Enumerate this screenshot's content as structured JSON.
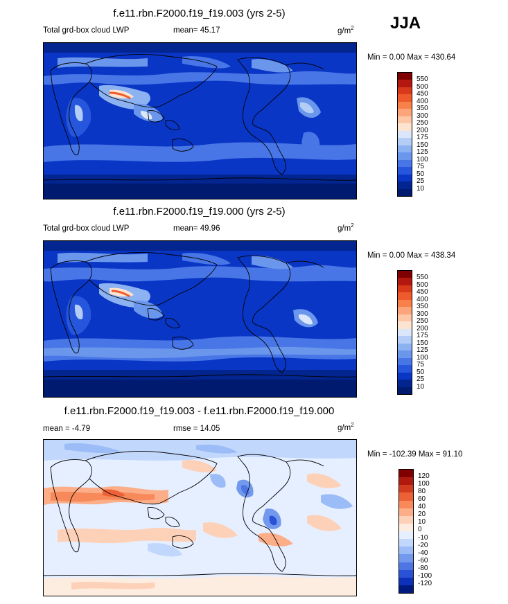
{
  "season": "JJA",
  "panels": [
    {
      "title": "f.e11.rbn.F2000.f19_f19.003 (yrs 2-5)",
      "left_label": "Total grd-box cloud LWP",
      "stat_label": "mean=",
      "stat_value": "45.17",
      "units": "g/m",
      "units_exp": "2",
      "minmax": "Min =   0.00 Max = 430.64",
      "colorbar_labels": [
        "550",
        "500",
        "450",
        "400",
        "350",
        "300",
        "250",
        "200",
        "175",
        "150",
        "125",
        "100",
        "75",
        "50",
        "25",
        "10"
      ],
      "colorbar_colors": [
        "#7f0000",
        "#b2180f",
        "#d8391a",
        "#ee5a2b",
        "#f8804b",
        "#fca57a",
        "#fdc7a6",
        "#fde4d1",
        "#dbe6fb",
        "#b3cdf7",
        "#8cb2f2",
        "#6a96ec",
        "#4876e6",
        "#2556dc",
        "#0a36c6",
        "#032590",
        "#001a70"
      ]
    },
    {
      "title": "f.e11.rbn.F2000.f19_f19.000 (yrs 2-5)",
      "left_label": "Total grd-box cloud LWP",
      "stat_label": "mean=",
      "stat_value": "49.96",
      "units": "g/m",
      "units_exp": "2",
      "minmax": "Min =   0.00 Max = 438.34",
      "colorbar_labels": [
        "550",
        "500",
        "450",
        "400",
        "350",
        "300",
        "250",
        "200",
        "175",
        "150",
        "125",
        "100",
        "75",
        "50",
        "25",
        "10"
      ],
      "colorbar_colors": [
        "#7f0000",
        "#b2180f",
        "#d8391a",
        "#ee5a2b",
        "#f8804b",
        "#fca57a",
        "#fdc7a6",
        "#fde4d1",
        "#dbe6fb",
        "#b3cdf7",
        "#8cb2f2",
        "#6a96ec",
        "#4876e6",
        "#2556dc",
        "#0a36c6",
        "#032590",
        "#001a70"
      ]
    },
    {
      "title": "f.e11.rbn.F2000.f19_f19.003 - f.e11.rbn.F2000.f19_f19.000",
      "left_label": "mean =  -4.79",
      "stat_label": "rmse =",
      "stat_value": "14.05",
      "units": "g/m",
      "units_exp": "2",
      "minmax": "Min = -102.39 Max =  91.10",
      "colorbar_labels": [
        "120",
        "100",
        "80",
        "60",
        "40",
        "20",
        "10",
        "0",
        "-10",
        "-20",
        "-40",
        "-60",
        "-80",
        "-100",
        "-120"
      ],
      "colorbar_colors": [
        "#800000",
        "#b01a0e",
        "#d23c1e",
        "#ec6236",
        "#f7895a",
        "#fbae88",
        "#fdd1b8",
        "#fdece0",
        "#e6efff",
        "#c2d7fc",
        "#9bbcf6",
        "#7399ee",
        "#4d76e4",
        "#2a52d6",
        "#0d31ba",
        "#001a80"
      ]
    }
  ]
}
